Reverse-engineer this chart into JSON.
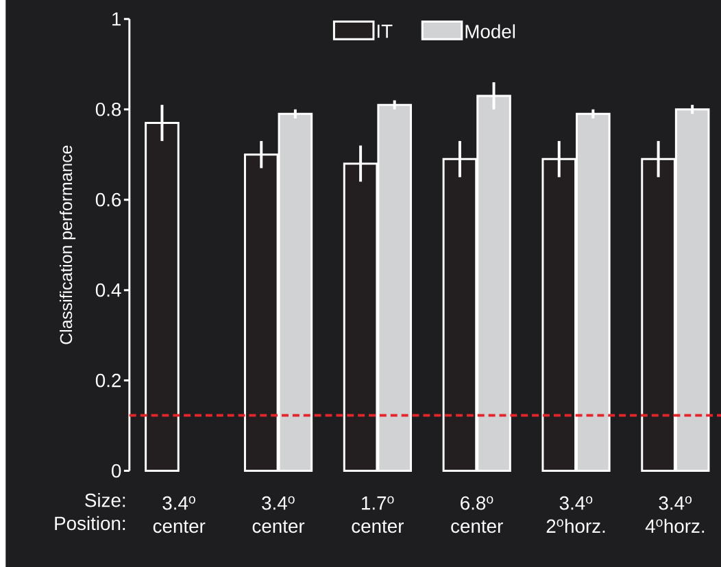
{
  "chart_data": {
    "type": "bar",
    "ylabel": "Classification performance",
    "categories": [
      "3.4$^{o}$ center",
      "3.4$^{o}$ center",
      "1.7$^{o}$ center",
      "6.8$^{o}$ center",
      "3.4$^{o}$ 2$^{o}$horz.",
      "3.4$^{o}$ 4$^{o}$horz."
    ],
    "series": [
      {
        "name": "IT",
        "color": "#231f20",
        "values": [
          0.77,
          0.7,
          0.68,
          0.69,
          0.69,
          0.69
        ],
        "errors": [
          0.04,
          0.03,
          0.04,
          0.04,
          0.04,
          0.04
        ]
      },
      {
        "name": "Model",
        "color": "#d1d2d4",
        "values": [
          null,
          0.79,
          0.81,
          0.83,
          0.79,
          0.8
        ],
        "errors": [
          null,
          0.01,
          0.01,
          0.03,
          0.01,
          0.01
        ]
      }
    ],
    "ylim": [
      0,
      1
    ],
    "yticks": [
      0,
      0.2,
      0.4,
      0.6,
      0.8,
      1
    ],
    "ref_lines": [
      {
        "axis": "y",
        "value": 0.123,
        "color": "#e3262a",
        "line_style": "dashed"
      }
    ],
    "legend": "top",
    "annotations": [
      "Size:",
      "Position:"
    ]
  }
}
